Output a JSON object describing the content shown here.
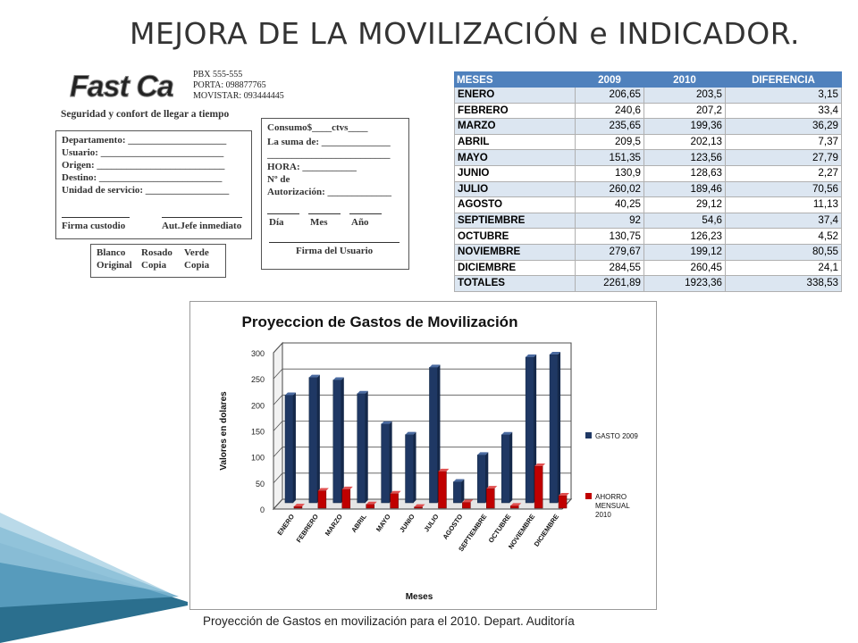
{
  "slide_title": "MEJORA DE LA MOVILIZACIÓN e INDICADOR.",
  "form": {
    "logo_text": "Fast Car",
    "contacts": [
      "PBX 555-555",
      "PORTA: 098877765",
      "MOVISTAR: 093444445"
    ],
    "tagline": "Seguridad y confort de llegar a tiempo",
    "left_fields": [
      "Departamento: ____________________",
      "Usuario: _________________________",
      "Origen: __________________________",
      "Destino: _________________________",
      "Unidad de servicio: _________________"
    ],
    "left_signatures": [
      "Firma custodio",
      "Aut.Jefe inmediato"
    ],
    "copies": [
      [
        "Blanco",
        "Original"
      ],
      [
        "Rosado",
        "Copia"
      ],
      [
        "Verde",
        "Copia"
      ]
    ],
    "right_fields": [
      "Consumo$____ctvs____",
      "La suma de: ______________",
      "_________________________",
      "HORA: ___________",
      "Nº de",
      "Autorización: _____________",
      "Día",
      "Mes",
      "Año",
      "Firma del Usuario"
    ]
  },
  "table": {
    "headers": [
      "MESES",
      "2009",
      "2010",
      "DIFERENCIA"
    ],
    "rows": [
      [
        "ENERO",
        "206,65",
        "203,5",
        "3,15"
      ],
      [
        "FEBRERO",
        "240,6",
        "207,2",
        "33,4"
      ],
      [
        "MARZO",
        "235,65",
        "199,36",
        "36,29"
      ],
      [
        "ABRIL",
        "209,5",
        "202,13",
        "7,37"
      ],
      [
        "MAYO",
        "151,35",
        "123,56",
        "27,79"
      ],
      [
        "JUNIO",
        "130,9",
        "128,63",
        "2,27"
      ],
      [
        "JULIO",
        "260,02",
        "189,46",
        "70,56"
      ],
      [
        "AGOSTO",
        "40,25",
        "29,12",
        "11,13"
      ],
      [
        "SEPTIEMBRE",
        "92",
        "54,6",
        "37,4"
      ],
      [
        "OCTUBRE",
        "130,75",
        "126,23",
        "4,52"
      ],
      [
        "NOVIEMBRE",
        "279,67",
        "199,12",
        "80,55"
      ],
      [
        "DICIEMBRE",
        "284,55",
        "260,45",
        "24,1"
      ],
      [
        "TOTALES",
        "2261,89",
        "1923,36",
        "338,53"
      ]
    ]
  },
  "chart_data": {
    "type": "bar",
    "title": "Proyeccion de Gastos de Movilización",
    "xlabel": "Meses",
    "ylabel": "Valores en dolares",
    "categories": [
      "ENERO",
      "FEBRERO",
      "MARZO",
      "ABRIL",
      "MAYO",
      "JUNIO",
      "JULIO",
      "AGOSTO",
      "SEPTIEMBRE",
      "OCTUBRE",
      "NOVIEMBRE",
      "DICIEMBRE"
    ],
    "series": [
      {
        "name": "GASTO 2009",
        "color": "#1f3864",
        "values": [
          206.65,
          240.6,
          235.65,
          209.5,
          151.35,
          130.9,
          260.02,
          40.25,
          92,
          130.75,
          279.67,
          284.55
        ]
      },
      {
        "name": "AHORRO MENSUAL 2010",
        "color": "#c00000",
        "values": [
          3.15,
          33.4,
          36.29,
          7.37,
          27.79,
          2.27,
          70.56,
          11.13,
          37.4,
          4.52,
          80.55,
          24.1
        ]
      }
    ],
    "ylim": [
      0,
      300
    ],
    "yticks": [
      "0",
      "50",
      "100",
      "150",
      "200",
      "250",
      "300"
    ],
    "grid": true,
    "legend": "right"
  },
  "caption": "Proyección de Gastos  en movilización para el 2010. Depart. Auditoría"
}
